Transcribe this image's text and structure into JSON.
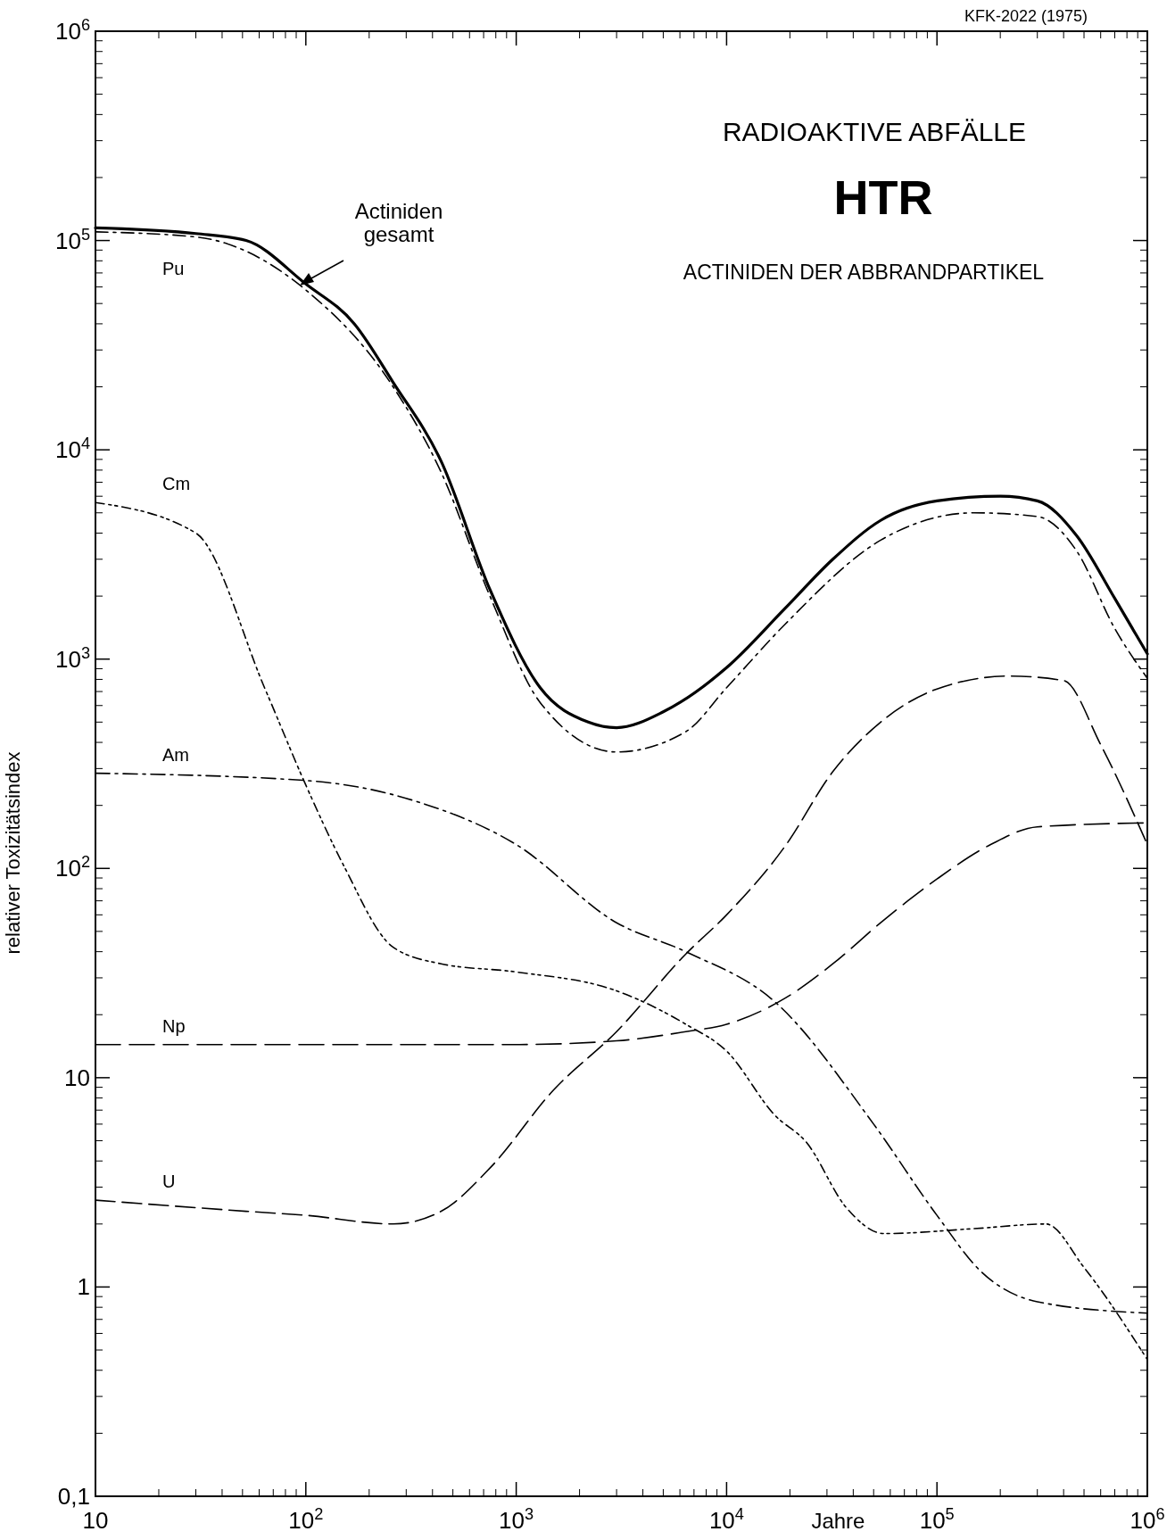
{
  "chart_data": {
    "type": "line",
    "title": "RADIOAKTIVE ABFÄLLE",
    "subtitle": "HTR",
    "xlabel": "Jahre",
    "ylabel": "relativer Toxizitätsindex",
    "annotations": [
      "ACTINIDEN DER ABBRANDPARTIKEL",
      "KFK-2022 (1975)"
    ],
    "log": "xy",
    "grid": false,
    "marker": "none",
    "xlim": [
      10,
      1000000
    ],
    "ylim": [
      0.1,
      1000000
    ],
    "xticks": [
      10,
      {
        "value": 100,
        "label": "10$^{2}$"
      },
      {
        "value": 1000,
        "label": "10$^{3}$"
      },
      {
        "value": 10000,
        "label": "10$^{4}$"
      },
      {
        "value": 100000,
        "label": "10$^{5}$"
      },
      {
        "value": 1000000,
        "label": "10$^{6}$"
      }
    ],
    "yticks": [
      {
        "value": 0.1,
        "label": "0,1"
      },
      1,
      10,
      {
        "value": 100,
        "label": "10$^{2}$"
      },
      {
        "value": 1000,
        "label": "10$^{3}$"
      },
      {
        "value": 10000,
        "label": "10$^{4}$"
      },
      {
        "value": 100000,
        "label": "10$^{5}$"
      },
      {
        "value": 1000000,
        "label": "10$^{6}$"
      }
    ],
    "series": [
      {
        "name": "Actiniden gesamt",
        "color": "#000000",
        "line_style": "solid",
        "x": [
          10,
          30,
          52,
          100,
          170,
          260,
          440,
          750,
          1300,
          2200,
          3000,
          5000,
          10000,
          19000,
          32000,
          54000,
          100000,
          200000,
          300000,
          460000,
          700000,
          1000000
        ],
        "values": [
          115000,
          108000,
          100000,
          62000,
          40000,
          21000,
          8800,
          2150,
          730,
          500,
          470,
          560,
          910,
          1750,
          3000,
          4600,
          5700,
          6000,
          5700,
          3900,
          1950,
          1060
        ]
      },
      {
        "name": "Pu",
        "color": "#000000",
        "line_style": "dashed",
        "x": [
          10,
          30,
          100,
          260,
          440,
          750,
          1300,
          3000,
          6400,
          10000,
          19000,
          54000,
          150000,
          300000,
          460000,
          700000,
          1000000
        ],
        "values": [
          110000,
          104000,
          58000,
          20000,
          7800,
          2000,
          620,
          360,
          450,
          730,
          1470,
          3700,
          5000,
          4800,
          3300,
          1400,
          810
        ]
      },
      {
        "name": "Cm",
        "color": "#000000",
        "line_style": "dashed",
        "x": [
          10,
          30,
          64,
          100,
          150,
          260,
          440,
          1000,
          3000,
          6400,
          10000,
          17000,
          24000,
          37000,
          56000,
          150000,
          330000,
          500000,
          1000000
        ],
        "values": [
          5600,
          4000,
          720,
          250,
          105,
          42,
          35,
          32,
          26,
          18,
          13.4,
          6.6,
          4.9,
          2.4,
          1.8,
          1.9,
          2,
          1.24,
          0.45
        ]
      },
      {
        "name": "Am",
        "color": "#000000",
        "line_style": "dashed",
        "x": [
          10,
          100,
          330,
          1000,
          3000,
          6400,
          17000,
          50000,
          100000,
          160000,
          300000,
          1000000
        ],
        "values": [
          285,
          263,
          210,
          130,
          55,
          40,
          23,
          6,
          2.2,
          1.2,
          0.85,
          0.75
        ]
      },
      {
        "name": "Np",
        "color": "#000000",
        "line_style": "dashed",
        "x": [
          10,
          1000,
          3000,
          6400,
          10000,
          19000,
          32000,
          54000,
          100000,
          180000,
          300000,
          1000000
        ],
        "values": [
          14.4,
          14.4,
          15,
          16.6,
          18,
          24,
          35,
          55,
          89,
          130,
          158,
          165
        ]
      },
      {
        "name": "U",
        "color": "#000000",
        "line_style": "dashed",
        "x": [
          10,
          52,
          100,
          260,
          440,
          750,
          1500,
          3000,
          6400,
          10000,
          19000,
          32000,
          54000,
          100000,
          220000,
          400000,
          600000,
          1000000
        ],
        "values": [
          2.6,
          2.3,
          2.2,
          2,
          2.3,
          3.7,
          8.7,
          16.6,
          39,
          60,
          128,
          290,
          500,
          720,
          830,
          790,
          390,
          130
        ]
      }
    ]
  }
}
